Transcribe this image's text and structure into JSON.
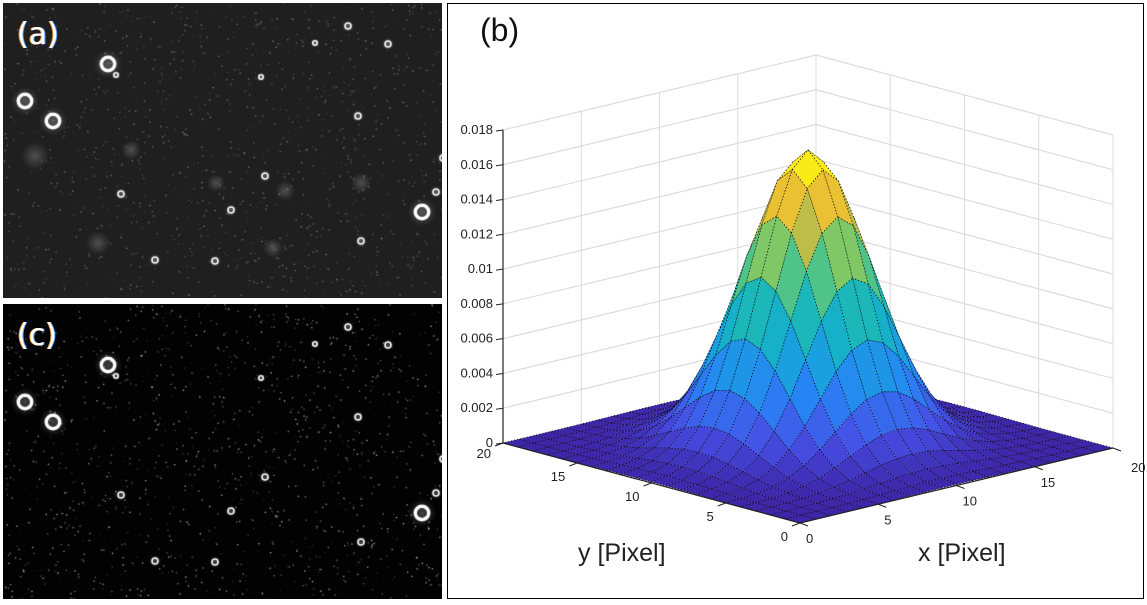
{
  "panels": {
    "a": {
      "label": "(a)"
    },
    "b": {
      "label": "(b)"
    },
    "c": {
      "label": "(c)"
    }
  },
  "chart_data": {
    "type": "surface",
    "title": "",
    "xlabel": "x [Pixel]",
    "ylabel": "y [Pixel]",
    "zlabel": "",
    "xlim": [
      0,
      20
    ],
    "ylim": [
      0,
      20
    ],
    "zlim": [
      0,
      0.018
    ],
    "xticks": [
      "0",
      "5",
      "10",
      "15",
      "20"
    ],
    "yticks": [
      "0",
      "5",
      "10",
      "15",
      "20"
    ],
    "zticks": [
      "0",
      "0.002",
      "0.004",
      "0.006",
      "0.008",
      "0.01",
      "0.012",
      "0.014",
      "0.016",
      "0.018"
    ],
    "grid": true,
    "colormap": "parula",
    "function": "2D Gaussian",
    "peak": {
      "x": 10,
      "y": 10,
      "z": 0.017
    },
    "sigma": 3,
    "grid_points": 21,
    "colors": {
      "low": "#3e26a8",
      "mid": "#12b2c0",
      "high": "#f9fb0e"
    }
  }
}
